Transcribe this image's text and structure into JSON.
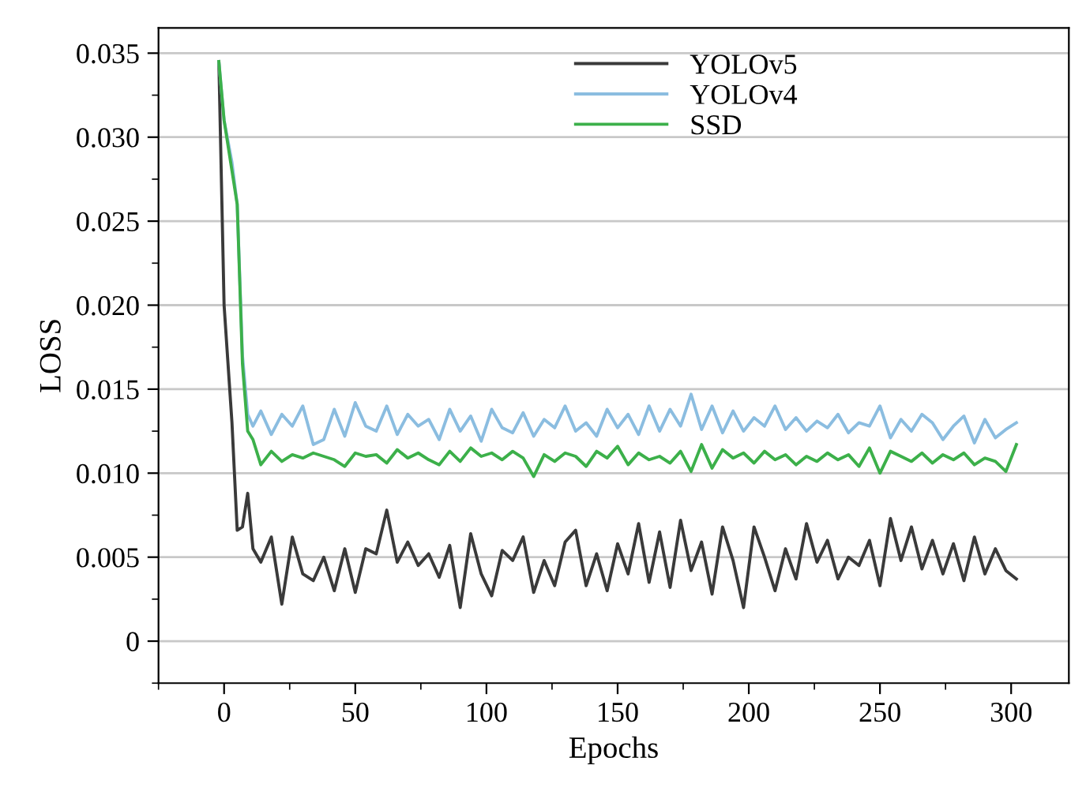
{
  "chart_data": {
    "type": "line",
    "xlabel": "Epochs",
    "ylabel": "LOSS",
    "x": [
      -2,
      0,
      3,
      5,
      7,
      9,
      11,
      14,
      18,
      22,
      26,
      30,
      34,
      38,
      42,
      46,
      50,
      54,
      58,
      62,
      66,
      70,
      74,
      78,
      82,
      86,
      90,
      94,
      98,
      102,
      106,
      110,
      114,
      118,
      122,
      126,
      130,
      134,
      138,
      142,
      146,
      150,
      154,
      158,
      162,
      166,
      170,
      174,
      178,
      182,
      186,
      190,
      194,
      198,
      202,
      206,
      210,
      214,
      218,
      222,
      226,
      230,
      234,
      238,
      242,
      246,
      250,
      254,
      258,
      262,
      266,
      270,
      274,
      278,
      282,
      286,
      290,
      294,
      298,
      302
    ],
    "series": [
      {
        "name": "YOLOv5",
        "color": "#3a3a3a",
        "values": [
          0.0345,
          0.02,
          0.013,
          0.0066,
          0.0068,
          0.0088,
          0.0055,
          0.0047,
          0.0062,
          0.0022,
          0.0062,
          0.004,
          0.0036,
          0.005,
          0.003,
          0.0055,
          0.0029,
          0.0055,
          0.0052,
          0.0078,
          0.0047,
          0.0059,
          0.0045,
          0.0052,
          0.0038,
          0.0057,
          0.002,
          0.0064,
          0.004,
          0.0027,
          0.0054,
          0.0048,
          0.0062,
          0.0029,
          0.0048,
          0.0033,
          0.0059,
          0.0066,
          0.0033,
          0.0052,
          0.003,
          0.0058,
          0.004,
          0.007,
          0.0035,
          0.0065,
          0.0032,
          0.0072,
          0.0042,
          0.0059,
          0.0028,
          0.0068,
          0.0048,
          0.002,
          0.0068,
          0.005,
          0.003,
          0.0055,
          0.0037,
          0.007,
          0.0047,
          0.006,
          0.0037,
          0.005,
          0.0045,
          0.006,
          0.0033,
          0.0073,
          0.0048,
          0.0068,
          0.0043,
          0.006,
          0.004,
          0.0058,
          0.0036,
          0.0062,
          0.004,
          0.0055,
          0.0042,
          0.0037
        ]
      },
      {
        "name": "YOLOv4",
        "color": "#8bbde0",
        "values": [
          0.0345,
          0.031,
          0.0285,
          0.026,
          0.017,
          0.0135,
          0.0128,
          0.0137,
          0.0123,
          0.0135,
          0.0128,
          0.014,
          0.0117,
          0.012,
          0.0138,
          0.0122,
          0.0142,
          0.0128,
          0.0125,
          0.014,
          0.0123,
          0.0135,
          0.0128,
          0.0132,
          0.012,
          0.0138,
          0.0125,
          0.0134,
          0.0119,
          0.0138,
          0.0127,
          0.0124,
          0.0136,
          0.0122,
          0.0132,
          0.0127,
          0.014,
          0.0125,
          0.013,
          0.0122,
          0.0138,
          0.0127,
          0.0135,
          0.0123,
          0.014,
          0.0125,
          0.0138,
          0.0128,
          0.0147,
          0.0126,
          0.014,
          0.0124,
          0.0137,
          0.0125,
          0.0133,
          0.0128,
          0.014,
          0.0126,
          0.0133,
          0.0125,
          0.0131,
          0.0127,
          0.0135,
          0.0124,
          0.013,
          0.0128,
          0.014,
          0.0121,
          0.0132,
          0.0125,
          0.0135,
          0.013,
          0.012,
          0.0128,
          0.0134,
          0.0118,
          0.0132,
          0.0121,
          0.0126,
          0.013
        ]
      },
      {
        "name": "SSD",
        "color": "#3cb04a",
        "values": [
          0.0345,
          0.031,
          0.028,
          0.026,
          0.0165,
          0.0125,
          0.012,
          0.0105,
          0.0113,
          0.0107,
          0.0111,
          0.0109,
          0.0112,
          0.011,
          0.0108,
          0.0104,
          0.0112,
          0.011,
          0.0111,
          0.0106,
          0.0114,
          0.0109,
          0.0112,
          0.0108,
          0.0105,
          0.0113,
          0.0107,
          0.0115,
          0.011,
          0.0112,
          0.0108,
          0.0113,
          0.0109,
          0.0098,
          0.0111,
          0.0107,
          0.0112,
          0.011,
          0.0104,
          0.0113,
          0.0109,
          0.0116,
          0.0105,
          0.0112,
          0.0108,
          0.011,
          0.0106,
          0.0113,
          0.0101,
          0.0117,
          0.0103,
          0.0114,
          0.0109,
          0.0112,
          0.0106,
          0.0113,
          0.0108,
          0.0111,
          0.0105,
          0.011,
          0.0107,
          0.0112,
          0.0108,
          0.0111,
          0.0104,
          0.0115,
          0.01,
          0.0113,
          0.011,
          0.0107,
          0.0112,
          0.0106,
          0.0111,
          0.0108,
          0.0112,
          0.0105,
          0.0109,
          0.0107,
          0.0101,
          0.0117
        ]
      }
    ],
    "xlim": [
      -25,
      322
    ],
    "ylim": [
      -0.0025,
      0.0365
    ],
    "xticks": [
      0,
      50,
      100,
      150,
      200,
      250,
      300,
      {
        "value": -25,
        "label": null
      },
      {
        "value": 25,
        "label": null
      },
      {
        "value": 75,
        "label": null
      },
      {
        "value": 125,
        "label": null
      },
      {
        "value": 175,
        "label": null
      },
      {
        "value": 225,
        "label": null
      },
      {
        "value": 275,
        "label": null
      }
    ],
    "yticks": [
      0,
      0.005,
      {
        "value": 0.01,
        "label": "0.010"
      },
      0.015,
      {
        "value": 0.02,
        "label": "0.020"
      },
      0.025,
      {
        "value": 0.03,
        "label": "0.030"
      },
      0.035,
      {
        "value": -0.0025,
        "label": null
      },
      {
        "value": 0.0025,
        "label": null
      },
      {
        "value": 0.0075,
        "label": null
      },
      {
        "value": 0.0125,
        "label": null
      },
      {
        "value": 0.0175,
        "label": null
      },
      {
        "value": 0.0225,
        "label": null
      },
      {
        "value": 0.0275,
        "label": null
      },
      {
        "value": 0.0325,
        "label": null
      }
    ],
    "grid": "y",
    "legend": "top",
    "marker": "none",
    "line_style": "solid"
  }
}
